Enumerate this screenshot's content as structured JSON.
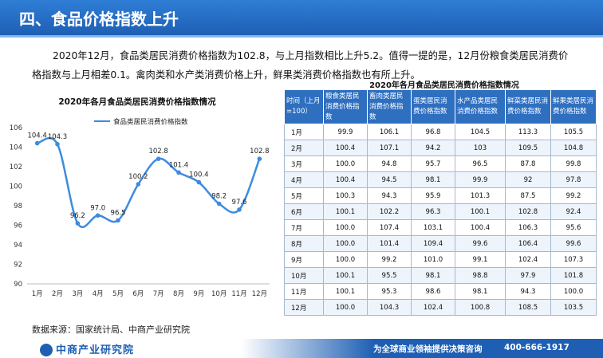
{
  "header": {
    "title": "四、食品价格指数上升"
  },
  "intro": "2020年12月，食品类居民消费价格指数为102.8，与上月指数相比上升5.2。值得一提的是，12月份粮食类居民消费价格指数与上月相差0.1。禽肉类和水产类消费价格上升，鲜果类消费价格指数也有所上升。",
  "chart_data": {
    "type": "line",
    "title": "2020年各月食品类居民消费价格指数情况",
    "legend": "食品类居民消费价格指数",
    "categories": [
      "1月",
      "2月",
      "3月",
      "4月",
      "5月",
      "6月",
      "7月",
      "8月",
      "9月",
      "10月",
      "11月",
      "12月"
    ],
    "values": [
      104.4,
      104.3,
      96.2,
      97.0,
      96.5,
      100.2,
      102.8,
      101.4,
      100.4,
      98.2,
      97.6,
      102.8
    ],
    "value_labels": [
      "104.4",
      "104.3",
      "96.2",
      "97.0",
      "96.5",
      "100.2",
      "102.8",
      "101.4",
      "100.4",
      "98.2",
      "97.6",
      "102.8"
    ],
    "yticks": [
      "90",
      "92",
      "94",
      "96",
      "98",
      "100",
      "102",
      "104",
      "106"
    ],
    "ylim": [
      90,
      106
    ],
    "color": "#3d8be0",
    "grid": false,
    "legend_position": "top"
  },
  "table": {
    "title": "2020年各月食品类居民消费价格指数情况",
    "headers": [
      "时间（上月=100）",
      "粮食类居民消费价格指数",
      "畜肉类居民消费价格指数",
      "蛋类居民消费价格指数",
      "水产品类居民消费价格指数",
      "鲜菜类居民消费价格指数",
      "鲜果类居民消费价格指数"
    ],
    "rows": [
      [
        "1月",
        "99.9",
        "106.1",
        "96.8",
        "104.5",
        "113.3",
        "105.5"
      ],
      [
        "2月",
        "100.4",
        "107.1",
        "94.2",
        "103",
        "109.5",
        "104.8"
      ],
      [
        "3月",
        "100.0",
        "94.8",
        "95.7",
        "96.5",
        "87.8",
        "99.8"
      ],
      [
        "4月",
        "100.4",
        "94.5",
        "98.1",
        "99.9",
        "92",
        "97.8"
      ],
      [
        "5月",
        "100.3",
        "94.3",
        "95.9",
        "101.3",
        "87.5",
        "99.2"
      ],
      [
        "6月",
        "100.1",
        "102.2",
        "96.3",
        "100.1",
        "102.8",
        "92.4"
      ],
      [
        "7月",
        "100.0",
        "107.4",
        "103.1",
        "100.4",
        "106.3",
        "95.6"
      ],
      [
        "8月",
        "100.0",
        "101.4",
        "109.4",
        "99.6",
        "106.4",
        "99.6"
      ],
      [
        "9月",
        "100.0",
        "99.2",
        "101.0",
        "99.1",
        "102.4",
        "107.3"
      ],
      [
        "10月",
        "100.1",
        "95.5",
        "98.1",
        "98.8",
        "97.9",
        "101.8"
      ],
      [
        "11月",
        "100.1",
        "95.3",
        "98.6",
        "98.1",
        "94.3",
        "100.0"
      ],
      [
        "12月",
        "100.0",
        "104.3",
        "102.4",
        "100.8",
        "108.5",
        "103.5"
      ]
    ]
  },
  "source": "数据来源：国家统计局、中商产业研究院",
  "footer": {
    "logo": "中商产业研究院",
    "slogan": "为全球商业领袖提供决策咨询",
    "phone": "400-666-1917"
  }
}
